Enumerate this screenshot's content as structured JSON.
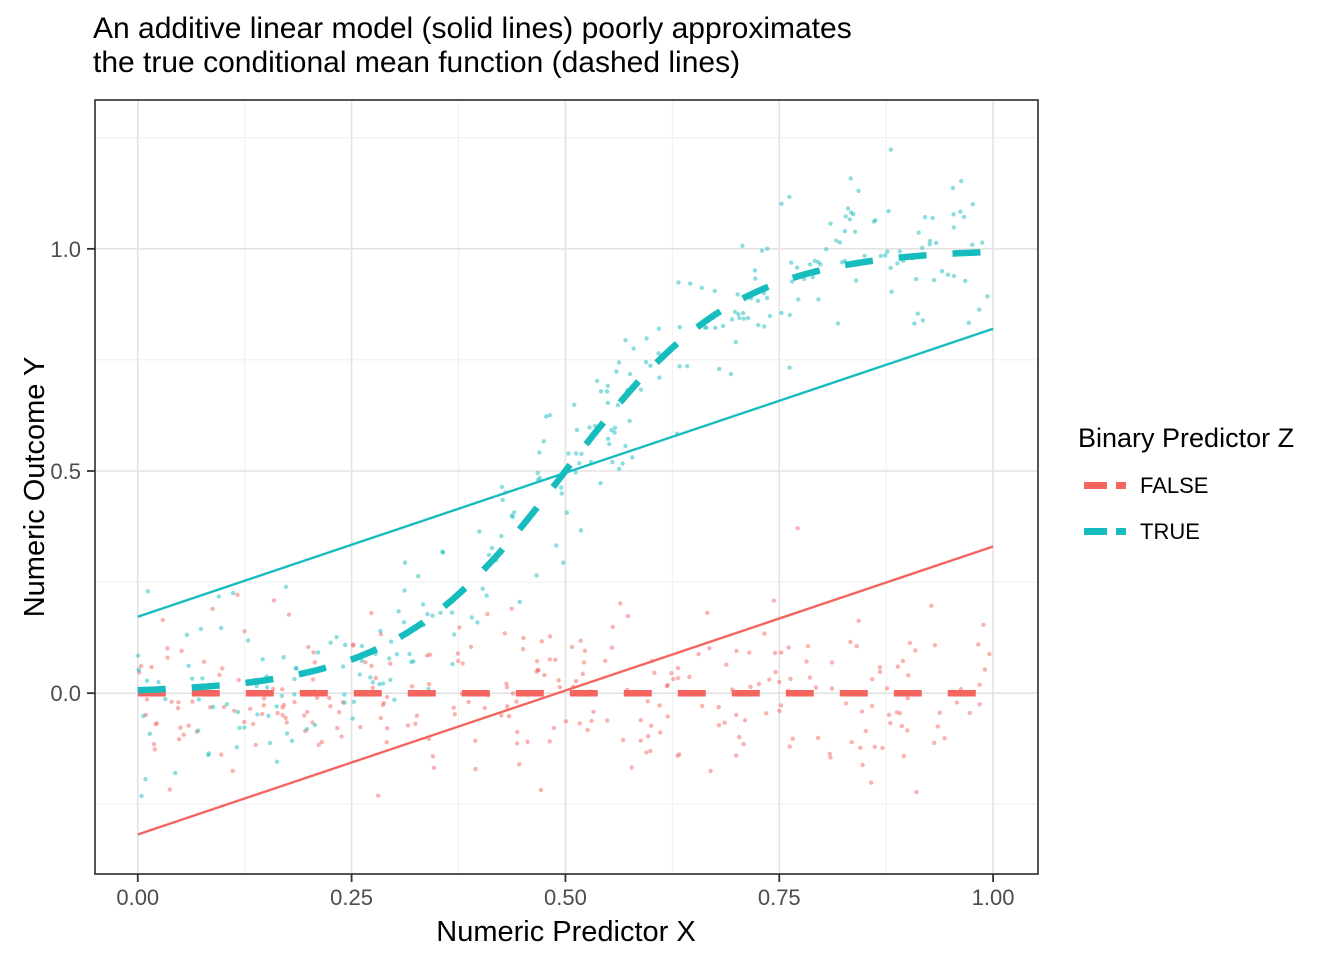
{
  "title": {
    "line1": "An additive linear model (solid lines) poorly approximates",
    "line2": "the true conditional mean function (dashed lines)"
  },
  "axes": {
    "x_title": "Numeric Predictor X",
    "y_title": "Numeric Outcome Y"
  },
  "legend": {
    "title": "Binary Predictor Z",
    "items": [
      {
        "label": "FALSE"
      },
      {
        "label": "TRUE"
      }
    ]
  },
  "chart_data": {
    "type": "scatter",
    "title": "An additive linear model (solid lines) poorly approximates the true conditional mean function (dashed lines)",
    "xlabel": "Numeric Predictor X",
    "ylabel": "Numeric Outcome Y",
    "legend_title": "Binary Predictor Z",
    "legend_position": "right",
    "xlim": [
      -0.05,
      1.0525
    ],
    "ylim": [
      -0.407,
      1.335
    ],
    "x_ticks": {
      "values": [
        0,
        0.25,
        0.5,
        0.75,
        1.0
      ],
      "labels": [
        "0.00",
        "0.25",
        "0.50",
        "0.75",
        "1.00"
      ],
      "minor": [
        0.125,
        0.375,
        0.625,
        0.875
      ]
    },
    "y_ticks": {
      "values": [
        0,
        0.5,
        1.0
      ],
      "labels": [
        "0.0",
        "0.5",
        "1.0"
      ],
      "minor": [
        -0.25,
        0.25,
        0.75,
        1.25
      ]
    },
    "grid": {
      "major": true,
      "minor": true,
      "major_color": "#E3E3E3",
      "minor_color": "#EFEFEF"
    },
    "panel_border_color": "#2B2B2B",
    "tick_label_color": "#4D4D4D",
    "styles": {
      "point_radius": 2.2,
      "point_opacity": 0.5,
      "solid_width": 2.4,
      "dashed_width": 6.5,
      "dash_pattern": [
        28,
        26
      ]
    },
    "groups": [
      {
        "name": "FALSE",
        "color": "#F4655F",
        "fitted_line": {
          "type": "linear",
          "intercept": -0.318,
          "slope": 0.648,
          "style": "solid",
          "x_range": [
            0,
            1
          ]
        },
        "true_mean_line": {
          "type": "constant",
          "value": 0,
          "style": "dashed",
          "x_range": [
            0,
            1
          ]
        },
        "scatter": {
          "n": 280,
          "seed": 42,
          "noise_sd": 0.095,
          "x_min": 0,
          "x_max": 1
        }
      },
      {
        "name": "TRUE",
        "color": "#17BCBE",
        "fitted_line": {
          "type": "linear",
          "intercept": 0.172,
          "slope": 0.648,
          "style": "solid",
          "x_range": [
            0,
            1
          ]
        },
        "true_mean_line": {
          "type": "logistic",
          "k": 10,
          "x0": 0.5,
          "style": "dashed",
          "x_range": [
            0,
            1
          ]
        },
        "scatter": {
          "n": 280,
          "seed": 7,
          "noise_sd": 0.095,
          "x_min": 0,
          "x_max": 1
        }
      }
    ]
  }
}
